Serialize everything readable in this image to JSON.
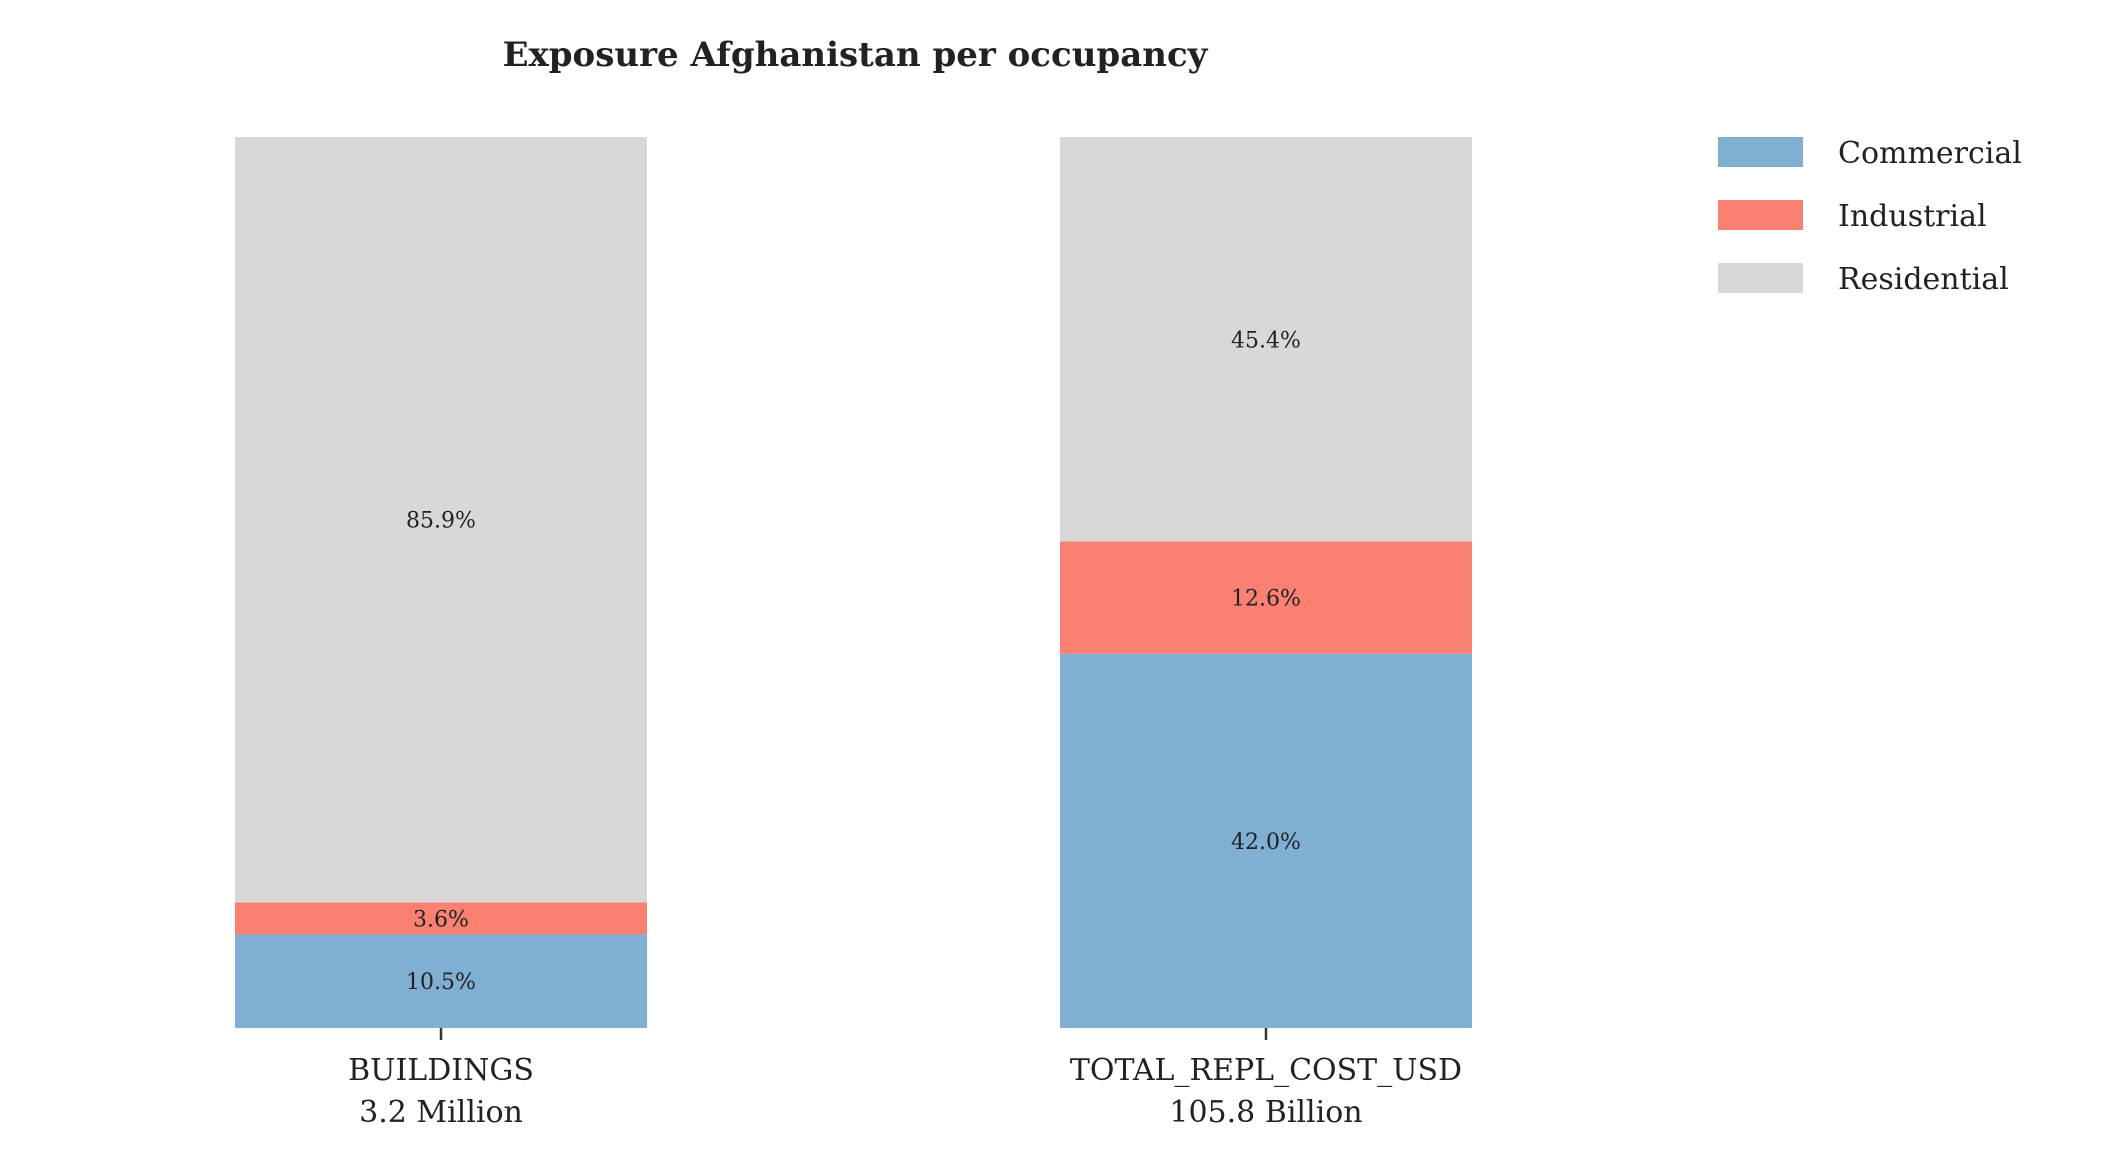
{
  "chart_data": {
    "type": "bar",
    "stacked": true,
    "normalized": true,
    "title": "Exposure Afghanistan per occupancy",
    "xlabel": "",
    "ylabel": "",
    "ylim": [
      0,
      100
    ],
    "grid": false,
    "legend_position": "top-right",
    "categories": [
      {
        "name": "BUILDINGS",
        "total": "3.2 Million"
      },
      {
        "name": "TOTAL_REPL_COST_USD",
        "total": "105.8 Billion"
      }
    ],
    "series": [
      {
        "name": "Commercial",
        "color": "#7fb0d3",
        "values": [
          10.5,
          42.0
        ],
        "labels": [
          "10.5%",
          "42.0%"
        ]
      },
      {
        "name": "Industrial",
        "color": "#fa8072",
        "values": [
          3.6,
          12.6
        ],
        "labels": [
          "3.6%",
          "12.6%"
        ]
      },
      {
        "name": "Residential",
        "color": "#d8d8d8",
        "values": [
          85.9,
          45.4
        ],
        "labels": [
          "85.9%",
          "45.4%"
        ]
      }
    ]
  }
}
